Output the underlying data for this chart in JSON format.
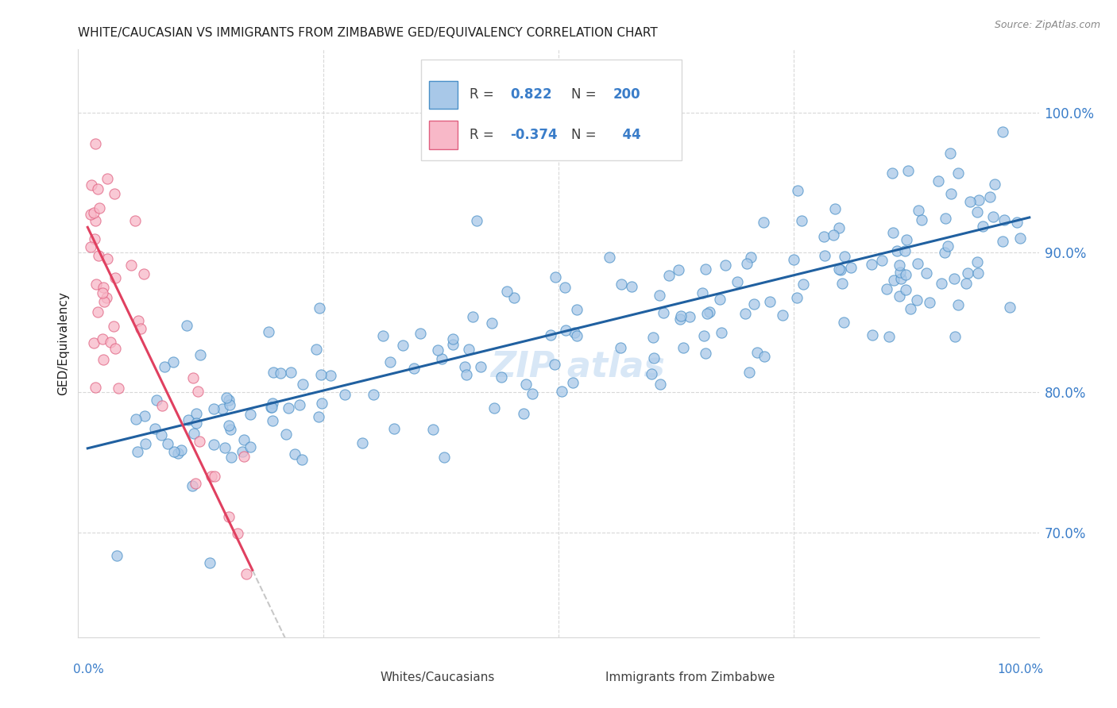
{
  "title": "WHITE/CAUCASIAN VS IMMIGRANTS FROM ZIMBABWE GED/EQUIVALENCY CORRELATION CHART",
  "source": "Source: ZipAtlas.com",
  "ylabel": "GED/Equivalency",
  "ytick_labels": [
    "70.0%",
    "80.0%",
    "90.0%",
    "100.0%"
  ],
  "ytick_values": [
    0.7,
    0.8,
    0.9,
    1.0
  ],
  "xlim": [
    -0.01,
    1.01
  ],
  "ylim": [
    0.625,
    1.045
  ],
  "legend_blue_R": "0.822",
  "legend_blue_N": "200",
  "legend_pink_R": "-0.374",
  "legend_pink_N": "44",
  "blue_fill": "#a8c8e8",
  "blue_edge": "#4a90c8",
  "pink_fill": "#f8b8c8",
  "pink_edge": "#e06080",
  "blue_line_color": "#2060a0",
  "pink_line_color": "#e04060",
  "dashed_line_color": "#c8c8c8",
  "watermark": "ZIP atlas",
  "title_color": "#202020",
  "axis_label_color": "#3a7dc9",
  "source_color": "#888888",
  "grid_color": "#d8d8d8",
  "legend_text_color": "#404040",
  "bottom_legend_text_color": "#404040"
}
